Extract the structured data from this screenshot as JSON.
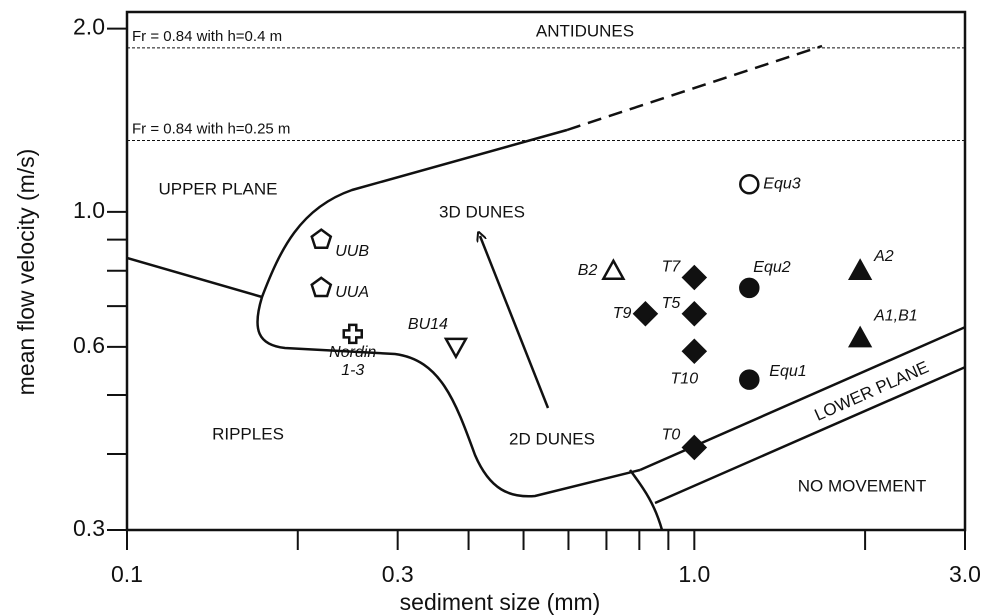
{
  "chart_data": {
    "type": "scatter",
    "xlabel": "sediment size (mm)",
    "ylabel": "mean flow velocity (m/s)",
    "xscale": "log",
    "yscale": "log",
    "xlim": [
      0.1,
      3.0
    ],
    "ylim": [
      0.3,
      2.13
    ],
    "xticks": [
      0.1,
      0.3,
      {
        "value": 1,
        "label": "1.0"
      },
      {
        "value": 3,
        "label": "3.0"
      }
    ],
    "xminor_ticks": [
      0.2,
      0.4,
      0.5,
      0.6,
      0.7,
      0.8,
      0.9,
      2
    ],
    "yticks": [
      0.3,
      0.6,
      {
        "value": 1,
        "label": "1.0"
      },
      {
        "value": 2,
        "label": "2.0"
      }
    ],
    "yminor_ticks": [
      0.4,
      0.5,
      0.7,
      0.8,
      0.9
    ],
    "hlines": [
      {
        "value": 1.86,
        "label": "Fr = 0.84 with h=0.4 m"
      },
      {
        "value": 1.31,
        "label": "Fr = 0.84 with h=0.25 m"
      }
    ],
    "annotations": [
      "ANTIDUNES",
      "UPPER PLANE",
      "3D DUNES",
      "RIPPLES",
      "2D DUNES",
      "LOWER PLANE",
      "NO MOVEMENT"
    ],
    "series": [
      {
        "marker": "pentagon",
        "filled": false,
        "labels": [
          "UUB",
          "UUA"
        ],
        "x": [
          0.22,
          0.22
        ],
        "values": [
          0.9,
          0.75
        ]
      },
      {
        "marker": "cross",
        "filled": false,
        "labels": [
          "Nordin 1-3"
        ],
        "x": [
          0.25
        ],
        "values": [
          0.63
        ]
      },
      {
        "marker": "triangle-down",
        "filled": false,
        "labels": [
          "BU14"
        ],
        "x": [
          0.38
        ],
        "values": [
          0.6
        ]
      },
      {
        "marker": "triangle-up",
        "filled": false,
        "labels": [
          "B2"
        ],
        "x": [
          0.72
        ],
        "values": [
          0.8
        ]
      },
      {
        "marker": "diamond",
        "filled": true,
        "labels": [
          "T9",
          "T7",
          "T5",
          "T10",
          "T0"
        ],
        "x": [
          0.82,
          1.0,
          1.0,
          1.0,
          1.0
        ],
        "values": [
          0.68,
          0.78,
          0.68,
          0.59,
          0.41
        ]
      },
      {
        "marker": "circle",
        "filled": false,
        "labels": [
          "Equ3"
        ],
        "x": [
          1.25
        ],
        "values": [
          1.11
        ]
      },
      {
        "marker": "circle",
        "filled": true,
        "labels": [
          "Equ2",
          "Equ1"
        ],
        "x": [
          1.25,
          1.25
        ],
        "values": [
          0.75,
          0.53
        ]
      },
      {
        "marker": "triangle-up",
        "filled": true,
        "labels": [
          "A2",
          "A1,B1"
        ],
        "x": [
          1.96,
          1.96
        ],
        "values": [
          0.8,
          0.62
        ]
      }
    ]
  }
}
